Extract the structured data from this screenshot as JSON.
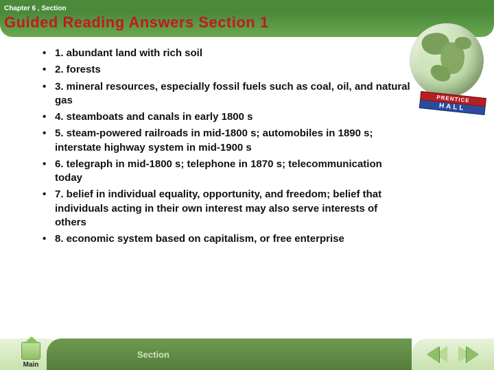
{
  "header": {
    "chapter_label": "Chapter 6 , Section",
    "title": "Guided Reading Answers Section 1"
  },
  "answers": [
    "1. abundant land with rich soil",
    "2. forests",
    "3. mineral resources, especially fossil fuels such as coal, oil, and natural gas",
    "4. steamboats and canals in early 1800 s",
    "5. steam-powered railroads in mid-1800 s; automobiles in 1890 s; interstate highway system in mid-1900 s",
    "6. telegraph in mid-1800 s; telephone in 1870 s; telecommunication today",
    "7. belief in individual equality, opportunity, and freedom; belief that individuals acting in their own interest may also serve interests of others",
    "8. economic system based on capitalism, or free enterprise"
  ],
  "publisher": {
    "top": "PRENTICE",
    "bottom": "HALL"
  },
  "footer": {
    "main_label": "Main",
    "section_label": "Section"
  },
  "colors": {
    "header_green": "#4a8a3a",
    "title_red": "#c3191f",
    "footer_green_dark": "#567d3d"
  }
}
